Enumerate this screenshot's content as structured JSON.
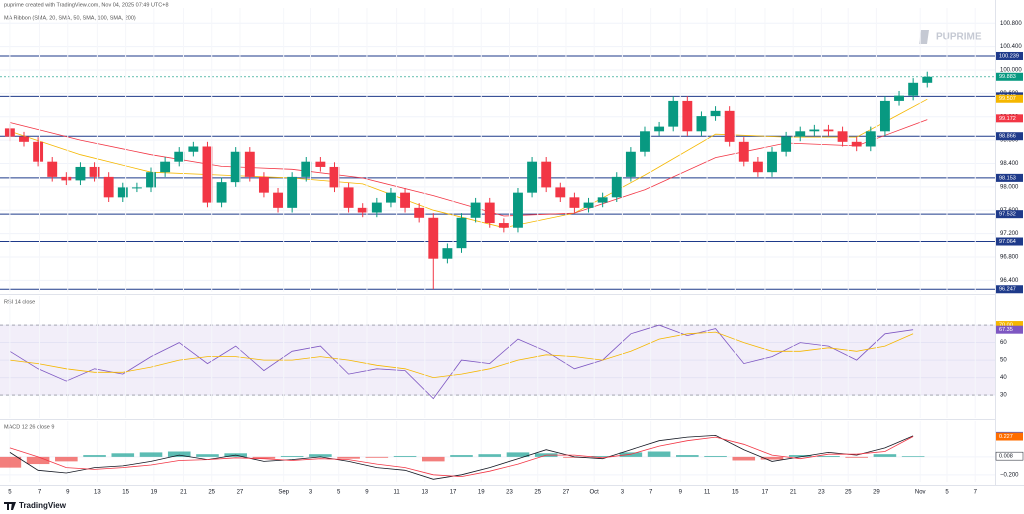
{
  "header": {
    "attribution": "puprime created with TradingView.com, Nov 04, 2025 07:49 UTC+8"
  },
  "watermark": "PUPRIME",
  "footer": {
    "brand": "TradingView"
  },
  "chart_data": [
    {
      "type": "candlestick",
      "title": "MA Ribbon (SMA, 20, SMA, 50, SMA, 100, SMA, 200)",
      "xlim": [
        -0.7,
        69.8
      ],
      "ylim": [
        96.2,
        101.06
      ],
      "yticks": [
        {
          "value": 96.4,
          "label": "96.400"
        },
        {
          "value": 96.8,
          "label": "96.800"
        },
        {
          "value": 97.2,
          "label": "97.200"
        },
        {
          "value": 97.6,
          "label": "97.600"
        },
        {
          "value": 98,
          "label": "98.000"
        },
        {
          "value": 98.4,
          "label": "98.400"
        },
        {
          "value": 98.8,
          "label": "98.800"
        },
        {
          "value": 99.2,
          "label": "99.200"
        },
        {
          "value": 99.6,
          "label": "99.600"
        },
        {
          "value": 100,
          "label": "100.000"
        },
        {
          "value": 100.4,
          "label": "100.400"
        },
        {
          "value": 100.8,
          "label": "100.800"
        }
      ],
      "grid": true,
      "up_color": "#089981",
      "down_color": "#f23645",
      "open": [
        99.0,
        98.86,
        98.77,
        98.43,
        98.17,
        98.11,
        98.34,
        98.17,
        97.82,
        97.99,
        97.99,
        98.25,
        98.43,
        98.6,
        98.69,
        97.73,
        98.08,
        98.6,
        98.17,
        97.9,
        97.64,
        98.17,
        98.43,
        98.34,
        97.99,
        97.64,
        97.56,
        97.73,
        97.9,
        97.64,
        97.47,
        96.77,
        96.95,
        97.47,
        97.73,
        97.38,
        97.3,
        97.9,
        98.43,
        97.99,
        97.82,
        97.64,
        97.73,
        97.82,
        98.17,
        98.6,
        98.95,
        99.03,
        99.47,
        98.95,
        99.21,
        99.3,
        98.77,
        98.43,
        98.25,
        98.6,
        98.86,
        98.95,
        98.98,
        98.95,
        98.77,
        98.69,
        98.95,
        99.47,
        99.56,
        99.78
      ],
      "high": [
        99.08,
        98.94,
        98.85,
        98.51,
        98.25,
        98.42,
        98.42,
        98.25,
        98.07,
        98.07,
        98.33,
        98.51,
        98.68,
        98.77,
        98.77,
        98.16,
        98.68,
        98.68,
        98.25,
        97.98,
        98.25,
        98.51,
        98.51,
        98.42,
        98.07,
        97.72,
        97.81,
        97.98,
        97.98,
        97.72,
        97.55,
        97.03,
        97.55,
        97.81,
        97.81,
        97.46,
        97.98,
        98.51,
        98.51,
        98.07,
        97.9,
        97.81,
        97.9,
        98.25,
        98.68,
        99.03,
        99.11,
        99.55,
        99.55,
        99.29,
        99.38,
        99.38,
        98.85,
        98.51,
        98.68,
        98.94,
        99.03,
        99.06,
        99.06,
        99.03,
        98.85,
        99.03,
        99.55,
        99.64,
        99.86,
        99.97
      ],
      "low": [
        98.78,
        98.69,
        98.35,
        98.09,
        98.03,
        98.03,
        98.09,
        97.74,
        97.74,
        97.91,
        97.91,
        98.17,
        98.35,
        98.52,
        97.65,
        97.65,
        98.0,
        98.09,
        97.82,
        97.56,
        97.56,
        98.09,
        98.26,
        97.91,
        97.56,
        97.48,
        97.48,
        97.65,
        97.56,
        97.39,
        96.25,
        96.69,
        96.87,
        97.39,
        97.3,
        97.22,
        97.22,
        97.82,
        97.91,
        97.74,
        97.56,
        97.56,
        97.65,
        97.74,
        98.09,
        98.52,
        98.87,
        98.95,
        98.87,
        98.87,
        99.13,
        98.69,
        98.35,
        98.17,
        98.17,
        98.52,
        98.78,
        98.87,
        98.87,
        98.69,
        98.61,
        98.61,
        98.87,
        99.39,
        99.48,
        99.7
      ],
      "close": [
        98.86,
        98.77,
        98.43,
        98.17,
        98.11,
        98.34,
        98.17,
        97.82,
        97.99,
        97.99,
        98.25,
        98.43,
        98.6,
        98.69,
        97.73,
        98.08,
        98.6,
        98.17,
        97.9,
        97.64,
        98.17,
        98.43,
        98.34,
        97.99,
        97.64,
        97.56,
        97.73,
        97.9,
        97.64,
        97.47,
        96.77,
        96.95,
        97.47,
        97.73,
        97.38,
        97.3,
        97.9,
        98.43,
        97.99,
        97.82,
        97.64,
        97.73,
        97.82,
        98.17,
        98.6,
        98.95,
        99.03,
        99.47,
        98.95,
        99.21,
        99.3,
        98.77,
        98.43,
        98.25,
        98.6,
        98.86,
        98.95,
        98.98,
        98.95,
        98.77,
        98.69,
        98.95,
        99.47,
        99.56,
        99.78,
        99.883
      ],
      "series": [
        {
          "color": "#f5b700",
          "x": [
            0,
            5,
            10,
            15,
            20,
            25,
            30,
            35,
            40,
            45,
            50,
            55,
            60,
            65
          ],
          "values": [
            98.95,
            98.55,
            98.25,
            98.2,
            98.15,
            98.05,
            97.6,
            97.3,
            97.55,
            98.2,
            98.9,
            98.85,
            98.85,
            99.5
          ]
        },
        {
          "color": "#f23645",
          "x": [
            0,
            5,
            10,
            15,
            20,
            25,
            30,
            35,
            40,
            45,
            50,
            55,
            60,
            65
          ],
          "values": [
            99.1,
            98.8,
            98.55,
            98.35,
            98.3,
            98.15,
            97.85,
            97.5,
            97.55,
            97.95,
            98.5,
            98.75,
            98.7,
            99.15
          ]
        }
      ],
      "levels": [
        100.239,
        99.548,
        98.866,
        98.153,
        97.532,
        97.064,
        96.247
      ],
      "level_color": "#1e3a8a",
      "tags": [
        {
          "value": 99.883,
          "color": "#089981"
        },
        {
          "value": 99.507,
          "color": "#f5b700"
        },
        {
          "value": 99.172,
          "color": "#f23645"
        }
      ]
    },
    {
      "type": "rsi",
      "title": "RSI 14 close",
      "xlim": [
        -0.7,
        69.8
      ],
      "ylim": [
        16.9,
        86.6
      ],
      "yticks": [
        30,
        40,
        50,
        60,
        70
      ],
      "band": [
        30,
        70
      ],
      "series": [
        {
          "color": "#7e57c2",
          "x": [
            0,
            2,
            4,
            6,
            8,
            10,
            12,
            14,
            16,
            18,
            20,
            22,
            24,
            26,
            28,
            30,
            32,
            34,
            36,
            38,
            40,
            42,
            44,
            46,
            48,
            50,
            52,
            54,
            56,
            58,
            60,
            62,
            64
          ],
          "values": [
            55,
            45,
            38,
            45,
            42,
            52,
            60,
            48,
            58,
            44,
            55,
            58,
            42,
            45,
            44,
            28,
            50,
            48,
            62,
            55,
            45,
            50,
            65,
            70,
            64,
            68,
            48,
            52,
            60,
            58,
            50,
            65,
            67.35
          ]
        },
        {
          "color": "#f5b700",
          "x": [
            0,
            2,
            4,
            6,
            8,
            10,
            12,
            14,
            16,
            18,
            20,
            22,
            24,
            26,
            28,
            30,
            32,
            34,
            36,
            38,
            40,
            42,
            44,
            46,
            48,
            50,
            52,
            54,
            56,
            58,
            60,
            62,
            64
          ],
          "values": [
            50,
            48,
            45,
            43,
            43,
            46,
            50,
            52,
            52,
            50,
            50,
            52,
            50,
            47,
            45,
            40,
            42,
            45,
            50,
            53,
            52,
            50,
            55,
            62,
            65,
            66,
            60,
            55,
            55,
            57,
            55,
            58,
            65
          ]
        }
      ],
      "tags": [
        {
          "value": 70,
          "label": "70.00",
          "color": "#f5b700"
        },
        {
          "value": 67.35,
          "color": "#7e57c2"
        }
      ]
    },
    {
      "type": "macd",
      "title": "MACD 12 26 close 9",
      "xlim": [
        -0.7,
        69.8
      ],
      "ylim": [
        -0.28,
        0.4
      ],
      "yticks": [
        {
          "value": -0.2,
          "label": "−0.200"
        },
        {
          "value": 0,
          "label": "0.000"
        }
      ],
      "xticks": [
        {
          "value": 0,
          "label": "5"
        },
        {
          "value": 2.1,
          "label": "7"
        },
        {
          "value": 4.1,
          "label": "9"
        },
        {
          "value": 6.2,
          "label": "13"
        },
        {
          "value": 8.2,
          "label": "15"
        },
        {
          "value": 10.2,
          "label": "19"
        },
        {
          "value": 12.3,
          "label": "21"
        },
        {
          "value": 14.3,
          "label": "25"
        },
        {
          "value": 16.3,
          "label": "27"
        },
        {
          "value": 19.4,
          "label": "Sep"
        },
        {
          "value": 21.3,
          "label": "3"
        },
        {
          "value": 23.3,
          "label": "5"
        },
        {
          "value": 25.3,
          "label": "9"
        },
        {
          "value": 27.4,
          "label": "11"
        },
        {
          "value": 29.4,
          "label": "13"
        },
        {
          "value": 31.4,
          "label": "17"
        },
        {
          "value": 33.4,
          "label": "19"
        },
        {
          "value": 35.4,
          "label": "23"
        },
        {
          "value": 37.4,
          "label": "25"
        },
        {
          "value": 39.4,
          "label": "27"
        },
        {
          "value": 41.4,
          "label": "Oct"
        },
        {
          "value": 43.4,
          "label": "3"
        },
        {
          "value": 45.4,
          "label": "7"
        },
        {
          "value": 47.5,
          "label": "9"
        },
        {
          "value": 49.4,
          "label": "11"
        },
        {
          "value": 51.4,
          "label": "15"
        },
        {
          "value": 53.5,
          "label": "17"
        },
        {
          "value": 55.5,
          "label": "21"
        },
        {
          "value": 57.5,
          "label": "23"
        },
        {
          "value": 59.4,
          "label": "25"
        },
        {
          "value": 61.4,
          "label": "29"
        },
        {
          "value": 64.5,
          "label": "Nov"
        },
        {
          "value": 66.4,
          "label": "5"
        },
        {
          "value": 68.4,
          "label": "7"
        }
      ],
      "histogram": {
        "up_color": "#26a69a",
        "down_color": "#ef5350",
        "x": [
          0,
          2,
          4,
          6,
          8,
          10,
          12,
          14,
          16,
          18,
          20,
          22,
          24,
          26,
          28,
          30,
          32,
          34,
          36,
          38,
          40,
          42,
          44,
          46,
          48,
          50,
          52,
          54,
          56,
          58,
          60,
          62,
          64
        ],
        "values": [
          -0.12,
          -0.08,
          -0.05,
          0.02,
          0.04,
          0.05,
          0.06,
          0.03,
          0.04,
          -0.02,
          0.01,
          0.03,
          -0.02,
          -0.01,
          0.01,
          -0.05,
          0.02,
          0.03,
          0.05,
          0.04,
          -0.01,
          0.01,
          0.05,
          0.06,
          0.02,
          0.01,
          -0.04,
          -0.03,
          0.02,
          0.01,
          -0.01,
          0.03,
          0.008
        ]
      },
      "series": [
        {
          "color": "#131722",
          "x": [
            0,
            2,
            4,
            6,
            8,
            10,
            12,
            14,
            16,
            18,
            20,
            22,
            24,
            26,
            28,
            30,
            32,
            34,
            36,
            38,
            40,
            42,
            44,
            46,
            48,
            50,
            52,
            54,
            56,
            58,
            60,
            62,
            64
          ],
          "values": [
            0.05,
            -0.15,
            -0.18,
            -0.12,
            -0.1,
            -0.05,
            0.02,
            -0.03,
            0.02,
            -0.05,
            -0.03,
            0,
            -0.05,
            -0.12,
            -0.15,
            -0.25,
            -0.2,
            -0.12,
            -0.02,
            0.08,
            0,
            -0.02,
            0.08,
            0.18,
            0.22,
            0.24,
            0.08,
            -0.05,
            0,
            0.05,
            0.02,
            0.1,
            0.234
          ]
        },
        {
          "color": "#f23645",
          "x": [
            0,
            2,
            4,
            6,
            8,
            10,
            12,
            14,
            16,
            18,
            20,
            22,
            24,
            26,
            28,
            30,
            32,
            34,
            36,
            38,
            40,
            42,
            44,
            46,
            48,
            50,
            52,
            54,
            56,
            58,
            60,
            62,
            64
          ],
          "values": [
            0.1,
            0,
            -0.12,
            -0.14,
            -0.12,
            -0.09,
            -0.04,
            -0.03,
            -0.01,
            -0.02,
            -0.04,
            -0.02,
            -0.03,
            -0.08,
            -0.12,
            -0.2,
            -0.22,
            -0.16,
            -0.08,
            0.02,
            0.02,
            -0.01,
            0.03,
            0.12,
            0.18,
            0.22,
            0.14,
            0.02,
            -0.02,
            0.03,
            0.03,
            0.06,
            0.227
          ]
        }
      ],
      "tags": [
        {
          "value": 0.234,
          "color": "#2962ff"
        },
        {
          "value": 0.227,
          "color": "#ff6d00"
        },
        {
          "value": 0.008,
          "color": "#ffffff"
        }
      ]
    }
  ]
}
